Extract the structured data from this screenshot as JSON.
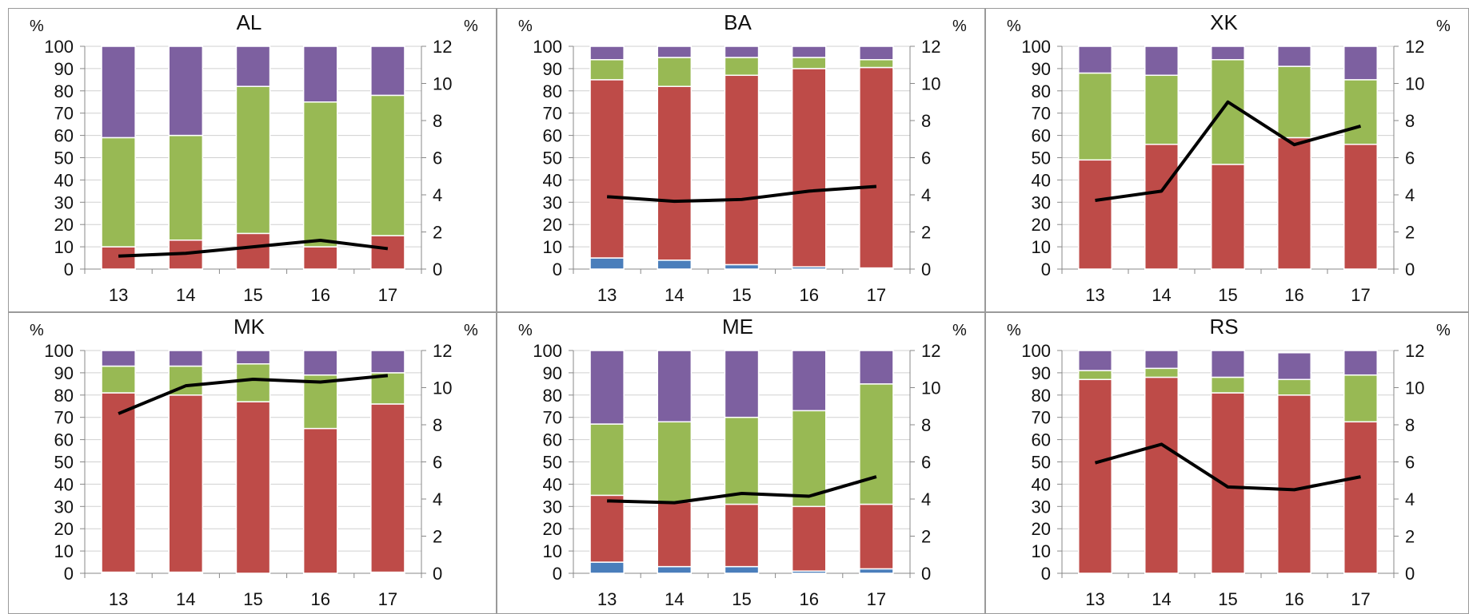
{
  "chart_data": [
    {
      "type": "bar",
      "stacked": true,
      "title": "AL",
      "categories": [
        "13",
        "14",
        "15",
        "16",
        "17"
      ],
      "y_left": {
        "label": "%",
        "ylim": [
          0,
          100
        ],
        "ticks": [
          "0",
          "10",
          "20",
          "30",
          "40",
          "50",
          "60",
          "70",
          "80",
          "90",
          "100"
        ]
      },
      "y_right": {
        "label": "%",
        "ylim": [
          0,
          12
        ],
        "ticks": [
          "0",
          "2",
          "4",
          "6",
          "8",
          "10",
          "12"
        ]
      },
      "series": [
        {
          "values": [
            0,
            0,
            0,
            0,
            0
          ],
          "color": "#4a7ebb"
        },
        {
          "values": [
            10,
            13,
            16,
            10,
            15
          ],
          "color": "#be4b48"
        },
        {
          "values": [
            49,
            47,
            66,
            65,
            63
          ],
          "color": "#98b954"
        },
        {
          "values": [
            41,
            40,
            18,
            25,
            22
          ],
          "color": "#7d60a0"
        }
      ],
      "line": {
        "values": [
          0.7,
          0.85,
          1.2,
          1.55,
          1.1
        ],
        "color": "#000000",
        "axis": "right"
      }
    },
    {
      "type": "bar",
      "stacked": true,
      "title": "BA",
      "categories": [
        "13",
        "14",
        "15",
        "16",
        "17"
      ],
      "y_left": {
        "label": "%",
        "ylim": [
          0,
          100
        ],
        "ticks": [
          "0",
          "10",
          "20",
          "30",
          "40",
          "50",
          "60",
          "70",
          "80",
          "90",
          "100"
        ]
      },
      "y_right": {
        "label": "%",
        "ylim": [
          0,
          12
        ],
        "ticks": [
          "0",
          "2",
          "4",
          "6",
          "8",
          "10",
          "12"
        ]
      },
      "series": [
        {
          "values": [
            5,
            4,
            2,
            1,
            0.5
          ],
          "color": "#4a7ebb"
        },
        {
          "values": [
            80,
            78,
            85,
            89,
            90
          ],
          "color": "#be4b48"
        },
        {
          "values": [
            9,
            13,
            8,
            5,
            3.5
          ],
          "color": "#98b954"
        },
        {
          "values": [
            6,
            5,
            5,
            5,
            6
          ],
          "color": "#7d60a0"
        }
      ],
      "line": {
        "values": [
          3.9,
          3.65,
          3.75,
          4.2,
          4.45
        ],
        "color": "#000000",
        "axis": "right"
      }
    },
    {
      "type": "bar",
      "stacked": true,
      "title": "XK",
      "categories": [
        "13",
        "14",
        "15",
        "16",
        "17"
      ],
      "y_left": {
        "label": "%",
        "ylim": [
          0,
          100
        ],
        "ticks": [
          "0",
          "10",
          "20",
          "30",
          "40",
          "50",
          "60",
          "70",
          "80",
          "90",
          "100"
        ]
      },
      "y_right": {
        "label": "%",
        "ylim": [
          0,
          12
        ],
        "ticks": [
          "0",
          "2",
          "4",
          "6",
          "8",
          "10",
          "12"
        ]
      },
      "series": [
        {
          "values": [
            0,
            0,
            0,
            0,
            0
          ],
          "color": "#4a7ebb"
        },
        {
          "values": [
            49,
            56,
            47,
            59,
            56
          ],
          "color": "#be4b48"
        },
        {
          "values": [
            39,
            31,
            47,
            32,
            29
          ],
          "color": "#98b954"
        },
        {
          "values": [
            12,
            13,
            6,
            9,
            15
          ],
          "color": "#7d60a0"
        }
      ],
      "line": {
        "values": [
          3.7,
          4.2,
          9.0,
          6.7,
          7.7
        ],
        "color": "#000000",
        "axis": "right"
      }
    },
    {
      "type": "bar",
      "stacked": true,
      "title": "MK",
      "categories": [
        "13",
        "14",
        "15",
        "16",
        "17"
      ],
      "y_left": {
        "label": "%",
        "ylim": [
          0,
          100
        ],
        "ticks": [
          "0",
          "10",
          "20",
          "30",
          "40",
          "50",
          "60",
          "70",
          "80",
          "90",
          "100"
        ]
      },
      "y_right": {
        "label": "%",
        "ylim": [
          0,
          12
        ],
        "ticks": [
          "0",
          "2",
          "4",
          "6",
          "8",
          "10",
          "12"
        ]
      },
      "series": [
        {
          "values": [
            0.5,
            0.5,
            0,
            0,
            0.5
          ],
          "color": "#4a7ebb"
        },
        {
          "values": [
            80.5,
            79.5,
            77,
            65,
            75.5
          ],
          "color": "#be4b48"
        },
        {
          "values": [
            12,
            13,
            17,
            24,
            14
          ],
          "color": "#98b954"
        },
        {
          "values": [
            7,
            7,
            6,
            11,
            10
          ],
          "color": "#7d60a0"
        }
      ],
      "line": {
        "values": [
          8.6,
          10.1,
          10.45,
          10.3,
          10.65
        ],
        "color": "#000000",
        "axis": "right"
      }
    },
    {
      "type": "bar",
      "stacked": true,
      "title": "ME",
      "categories": [
        "13",
        "14",
        "15",
        "16",
        "17"
      ],
      "y_left": {
        "label": "%",
        "ylim": [
          0,
          100
        ],
        "ticks": [
          "0",
          "10",
          "20",
          "30",
          "40",
          "50",
          "60",
          "70",
          "80",
          "90",
          "100"
        ]
      },
      "y_right": {
        "label": "%",
        "ylim": [
          0,
          12
        ],
        "ticks": [
          "0",
          "2",
          "4",
          "6",
          "8",
          "10",
          "12"
        ]
      },
      "series": [
        {
          "values": [
            5,
            3,
            3,
            1,
            2
          ],
          "color": "#4a7ebb"
        },
        {
          "values": [
            30,
            29,
            28,
            29,
            29
          ],
          "color": "#be4b48"
        },
        {
          "values": [
            32,
            36,
            39,
            43,
            54
          ],
          "color": "#98b954"
        },
        {
          "values": [
            33,
            32,
            30,
            27,
            15
          ],
          "color": "#7d60a0"
        }
      ],
      "line": {
        "values": [
          3.9,
          3.8,
          4.3,
          4.15,
          5.2
        ],
        "color": "#000000",
        "axis": "right"
      }
    },
    {
      "type": "bar",
      "stacked": true,
      "title": "RS",
      "categories": [
        "13",
        "14",
        "15",
        "16",
        "17"
      ],
      "y_left": {
        "label": "%",
        "ylim": [
          0,
          100
        ],
        "ticks": [
          "0",
          "10",
          "20",
          "30",
          "40",
          "50",
          "60",
          "70",
          "80",
          "90",
          "100"
        ]
      },
      "y_right": {
        "label": "%",
        "ylim": [
          0,
          12
        ],
        "ticks": [
          "0",
          "2",
          "4",
          "6",
          "8",
          "10",
          "12"
        ]
      },
      "series": [
        {
          "values": [
            0,
            0,
            0,
            0,
            0
          ],
          "color": "#4a7ebb"
        },
        {
          "values": [
            87,
            88,
            81,
            80,
            68
          ],
          "color": "#be4b48"
        },
        {
          "values": [
            4,
            4,
            7,
            7,
            21
          ],
          "color": "#98b954"
        },
        {
          "values": [
            9,
            8,
            12,
            12,
            11
          ],
          "color": "#7d60a0"
        }
      ],
      "line": {
        "values": [
          5.95,
          6.95,
          4.65,
          4.5,
          5.2
        ],
        "color": "#000000",
        "axis": "right"
      }
    }
  ]
}
